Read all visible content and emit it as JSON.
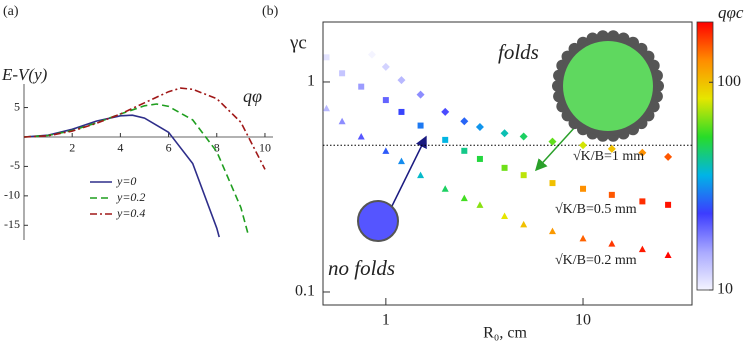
{
  "chart_data": [
    {
      "type": "line",
      "panel_label": "(a)",
      "y_label": "E-V(y)",
      "x_label": "qφ",
      "xlim": [
        0,
        10.5
      ],
      "ylim": [
        -17.5,
        9
      ],
      "xticks": [
        2,
        4,
        6,
        8,
        10
      ],
      "yticks": [
        5,
        -5,
        -10,
        -15
      ],
      "series": [
        {
          "name": "y=0",
          "color": "#2e2e8a",
          "dash": "solid",
          "x": [
            0,
            1,
            2,
            3,
            4,
            4.5,
            5,
            6,
            7,
            8,
            8.1
          ],
          "values": [
            0,
            0.3,
            1.3,
            2.7,
            3.6,
            3.7,
            3.2,
            0.8,
            -4.5,
            -15.5,
            -17
          ]
        },
        {
          "name": "y=0.2",
          "color": "#1f9e1f",
          "dash": "dashed",
          "x": [
            0,
            1,
            2,
            3,
            4,
            5,
            5.5,
            6,
            7,
            8,
            9,
            9.3
          ],
          "values": [
            0,
            0.25,
            1.1,
            2.4,
            3.9,
            5.3,
            5.6,
            5.2,
            2.9,
            -2.5,
            -12,
            -16.5
          ]
        },
        {
          "name": "y=0.4",
          "color": "#a01818",
          "dash": "dashdot",
          "x": [
            0,
            1,
            2,
            3,
            4,
            5,
            6,
            6.5,
            7,
            8,
            9,
            10
          ],
          "values": [
            0,
            0.2,
            1,
            2.3,
            3.9,
            5.8,
            7.7,
            8.3,
            8.1,
            6.5,
            2.5,
            -5.5
          ]
        }
      ]
    },
    {
      "type": "scatter",
      "panel_label": "(b)",
      "y_label": "γc",
      "x_label": "R₀, cm",
      "log_x": true,
      "log_y": true,
      "xlim": [
        0.48,
        35.7
      ],
      "ylim": [
        0.0867,
        1.93
      ],
      "xticks": [
        1,
        10
      ],
      "yticks": [
        0.1,
        1
      ],
      "reference_line": 0.5,
      "annotations": [
        "folds",
        "no folds"
      ],
      "colorbar": {
        "label": "qφc",
        "zlim": [
          10,
          195
        ],
        "ticks": [
          10,
          100
        ],
        "log": true,
        "colormap": [
          "#f4f4ff",
          "#a8a8ff",
          "#3c3cff",
          "#00b4e6",
          "#28dc28",
          "#e6e600",
          "#ff8c00",
          "#ff0000"
        ]
      },
      "series": [
        {
          "name": "√K/B=1 mm",
          "marker": "diamond",
          "x": [
            0.85,
            1,
            1.2,
            1.5,
            2,
            2.5,
            3,
            4,
            5,
            7,
            10,
            14,
            20,
            27
          ],
          "values": [
            1.35,
            1.18,
            1.02,
            0.87,
            0.72,
            0.65,
            0.61,
            0.57,
            0.55,
            0.52,
            0.5,
            0.48,
            0.46,
            0.44
          ],
          "color_values": [
            10,
            12,
            14,
            17,
            22,
            27,
            32,
            40,
            48,
            62,
            80,
            100,
            125,
            150
          ]
        },
        {
          "name": "√K/B=0.5 mm",
          "marker": "square",
          "x": [
            0.5,
            0.6,
            0.75,
            1,
            1.2,
            1.5,
            2,
            2.5,
            3,
            4,
            5,
            7,
            10,
            14,
            20,
            27
          ],
          "values": [
            1.31,
            1.1,
            0.95,
            0.82,
            0.72,
            0.62,
            0.53,
            0.47,
            0.43,
            0.39,
            0.36,
            0.33,
            0.31,
            0.29,
            0.27,
            0.26
          ],
          "color_values": [
            11,
            13,
            16,
            20,
            24,
            29,
            36,
            44,
            52,
            64,
            76,
            100,
            125,
            150,
            170,
            185
          ]
        },
        {
          "name": "√K/B=0.2 mm",
          "marker": "triangle",
          "x": [
            0.5,
            0.6,
            0.75,
            1,
            1.2,
            1.5,
            2,
            2.5,
            3,
            4,
            5,
            7,
            10,
            14,
            20,
            27
          ],
          "values": [
            0.75,
            0.65,
            0.55,
            0.47,
            0.42,
            0.36,
            0.31,
            0.28,
            0.26,
            0.23,
            0.21,
            0.195,
            0.18,
            0.17,
            0.16,
            0.15
          ],
          "color_values": [
            14,
            17,
            21,
            26,
            31,
            38,
            48,
            58,
            68,
            84,
            100,
            120,
            145,
            165,
            180,
            192
          ]
        }
      ]
    }
  ]
}
